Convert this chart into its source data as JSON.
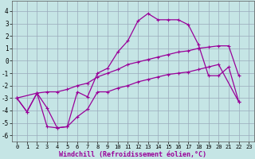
{
  "xlabel": "Windchill (Refroidissement éolien,°C)",
  "xlim": [
    -0.5,
    23.5
  ],
  "ylim": [
    -6.5,
    4.8
  ],
  "yticks": [
    -6,
    -5,
    -4,
    -3,
    -2,
    -1,
    0,
    1,
    2,
    3,
    4
  ],
  "xticks": [
    0,
    1,
    2,
    3,
    4,
    5,
    6,
    7,
    8,
    9,
    10,
    11,
    12,
    13,
    14,
    15,
    16,
    17,
    18,
    19,
    20,
    21,
    22,
    23
  ],
  "background_color": "#c5e5e5",
  "grid_color": "#99aabb",
  "line_color": "#990099",
  "line1_x": [
    0,
    1,
    2,
    3,
    4,
    5,
    6,
    7,
    8,
    9,
    10,
    11,
    12,
    13,
    14,
    15,
    16,
    17,
    18,
    19,
    20,
    21,
    22
  ],
  "line1_y": [
    -3.0,
    -4.1,
    -2.6,
    -5.3,
    -5.4,
    -5.3,
    -2.5,
    -2.9,
    -1.0,
    -0.6,
    0.7,
    1.6,
    3.2,
    3.8,
    3.3,
    3.3,
    3.3,
    2.9,
    1.3,
    -1.2,
    -1.2,
    -0.5,
    -3.3
  ],
  "line2_x": [
    0,
    1,
    2,
    3,
    4,
    5,
    6,
    7,
    8,
    9,
    10,
    11,
    12,
    13,
    14,
    15,
    16,
    17,
    18,
    19,
    20,
    21,
    22
  ],
  "line2_y": [
    -3.0,
    -4.1,
    -2.6,
    -2.5,
    -2.5,
    -2.3,
    -2.0,
    -1.8,
    -1.3,
    -1.0,
    -0.7,
    -0.3,
    -0.1,
    0.1,
    0.3,
    0.5,
    0.7,
    0.8,
    1.0,
    1.1,
    1.2,
    1.2,
    -1.2
  ],
  "line3_x": [
    0,
    2,
    3,
    4,
    5,
    6,
    7,
    8,
    9,
    10,
    11,
    12,
    13,
    14,
    15,
    16,
    17,
    18,
    19,
    20,
    22
  ],
  "line3_y": [
    -3.0,
    -2.6,
    -3.8,
    -5.4,
    -5.3,
    -4.5,
    -3.9,
    -2.5,
    -2.5,
    -2.2,
    -2.0,
    -1.7,
    -1.5,
    -1.3,
    -1.1,
    -1.0,
    -0.9,
    -0.7,
    -0.5,
    -0.3,
    -3.3
  ]
}
